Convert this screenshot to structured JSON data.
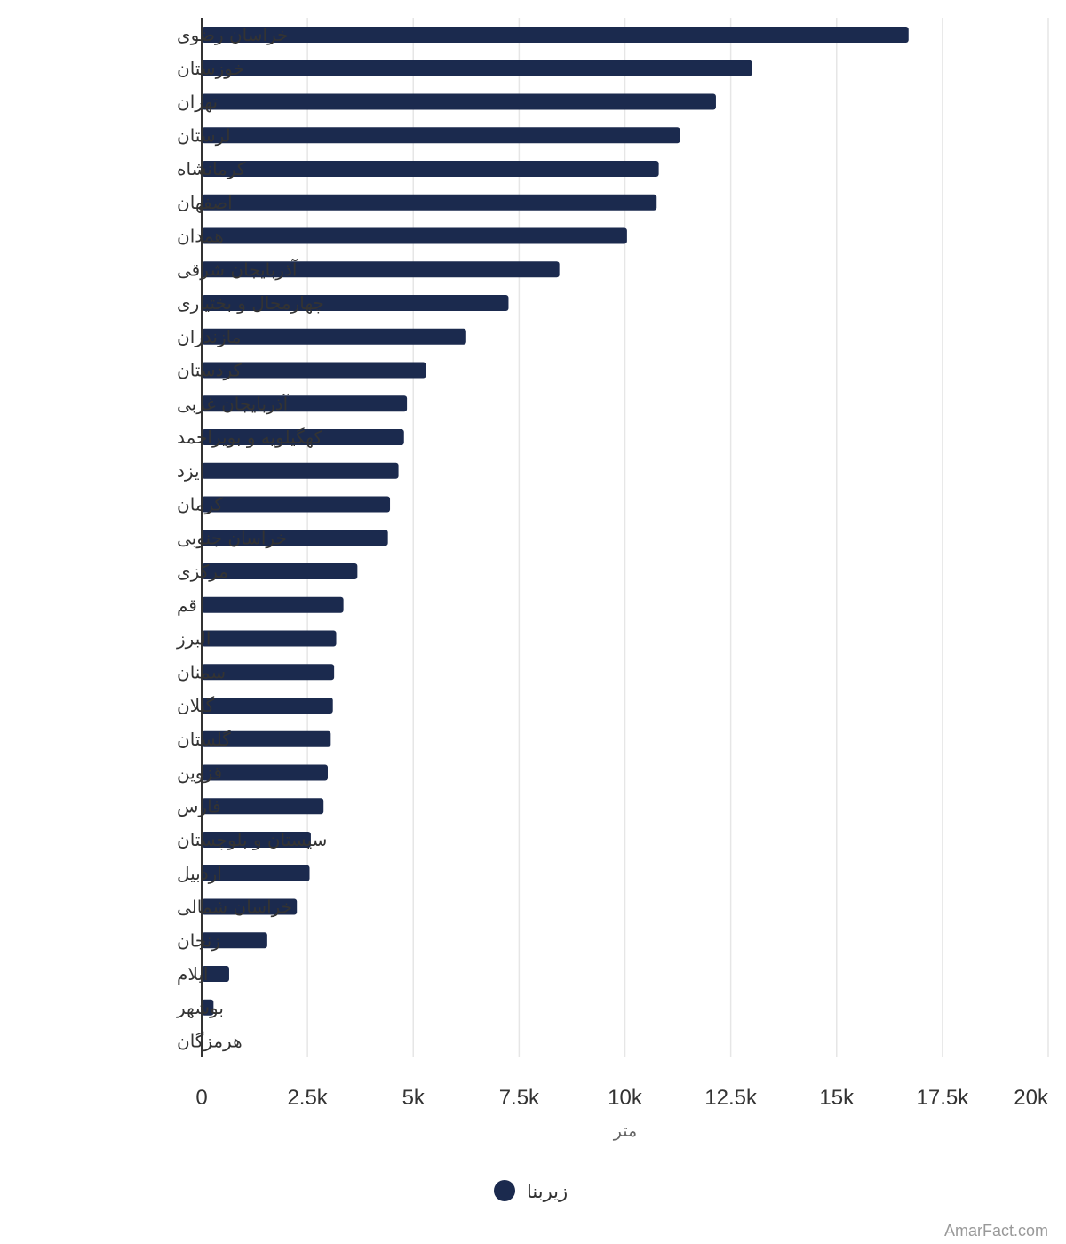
{
  "chart_data": {
    "type": "bar",
    "orientation": "horizontal",
    "categories": [
      "خراسان رضوی",
      "خوزستان",
      "تهران",
      "لرستان",
      "کرمانشاه",
      "اصفهان",
      "همدان",
      "آذربایجان شرقی",
      "چهارمحال و بختیاری",
      "مازندران",
      "کردستان",
      "آذربایجان غربی",
      "کهگیلویه و بویراحمد",
      "یزد",
      "کرمان",
      "خراسان جنوبی",
      "مرکزی",
      "قم",
      "البرز",
      "سمنان",
      "گیلان",
      "گلستان",
      "قزوین",
      "فارس",
      "سیستان و بلوچستان",
      "اردبیل",
      "خراسان شمالی",
      "زنجان",
      "ایلام",
      "بوشهر",
      "هرمزگان"
    ],
    "series": [
      {
        "name": "زیربنا",
        "color": "#1b2a4e",
        "values": [
          16700,
          13000,
          12150,
          11300,
          10800,
          10750,
          10050,
          8450,
          7250,
          6250,
          5300,
          4850,
          4780,
          4650,
          4450,
          4400,
          3680,
          3350,
          3180,
          3130,
          3100,
          3050,
          2980,
          2880,
          2580,
          2550,
          2250,
          1550,
          650,
          280,
          0
        ]
      }
    ],
    "xlabel": "متر",
    "xlim": [
      0,
      20000
    ],
    "ticks": [
      "0",
      "2.5k",
      "5k",
      "7.5k",
      "10k",
      "12.5k",
      "15k",
      "17.5k",
      "20k"
    ],
    "tick_values": [
      0,
      2500,
      5000,
      7500,
      10000,
      12500,
      15000,
      17500,
      20000
    ],
    "grid": true,
    "legend_position": "bottom"
  },
  "credit": "AmarFact.com",
  "colors": {
    "bar": "#1b2a4e",
    "grid": "#e6e6e6",
    "axis": "#333333"
  }
}
